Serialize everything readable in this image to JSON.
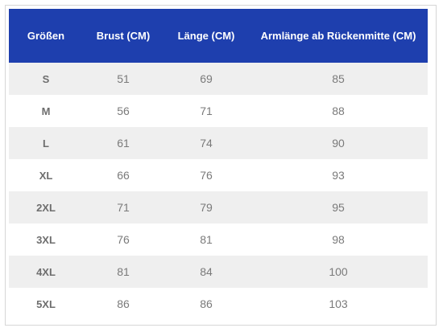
{
  "table": {
    "headers": {
      "size": "Größen",
      "chest": "Brust (CM)",
      "length": "Länge (CM)",
      "sleeve": "Armlänge ab Rückenmitte (CM)"
    },
    "rows": [
      {
        "size": "S",
        "chest": "51",
        "length": "69",
        "sleeve": "85"
      },
      {
        "size": "M",
        "chest": "56",
        "length": "71",
        "sleeve": "88"
      },
      {
        "size": "L",
        "chest": "61",
        "length": "74",
        "sleeve": "90"
      },
      {
        "size": "XL",
        "chest": "66",
        "length": "76",
        "sleeve": "93"
      },
      {
        "size": "2XL",
        "chest": "71",
        "length": "79",
        "sleeve": "95"
      },
      {
        "size": "3XL",
        "chest": "76",
        "length": "81",
        "sleeve": "98"
      },
      {
        "size": "4XL",
        "chest": "81",
        "length": "84",
        "sleeve": "100"
      },
      {
        "size": "5XL",
        "chest": "86",
        "length": "86",
        "sleeve": "103"
      }
    ]
  },
  "colors": {
    "header_bg": "#1e3fae",
    "stripe_bg": "#efefef"
  }
}
